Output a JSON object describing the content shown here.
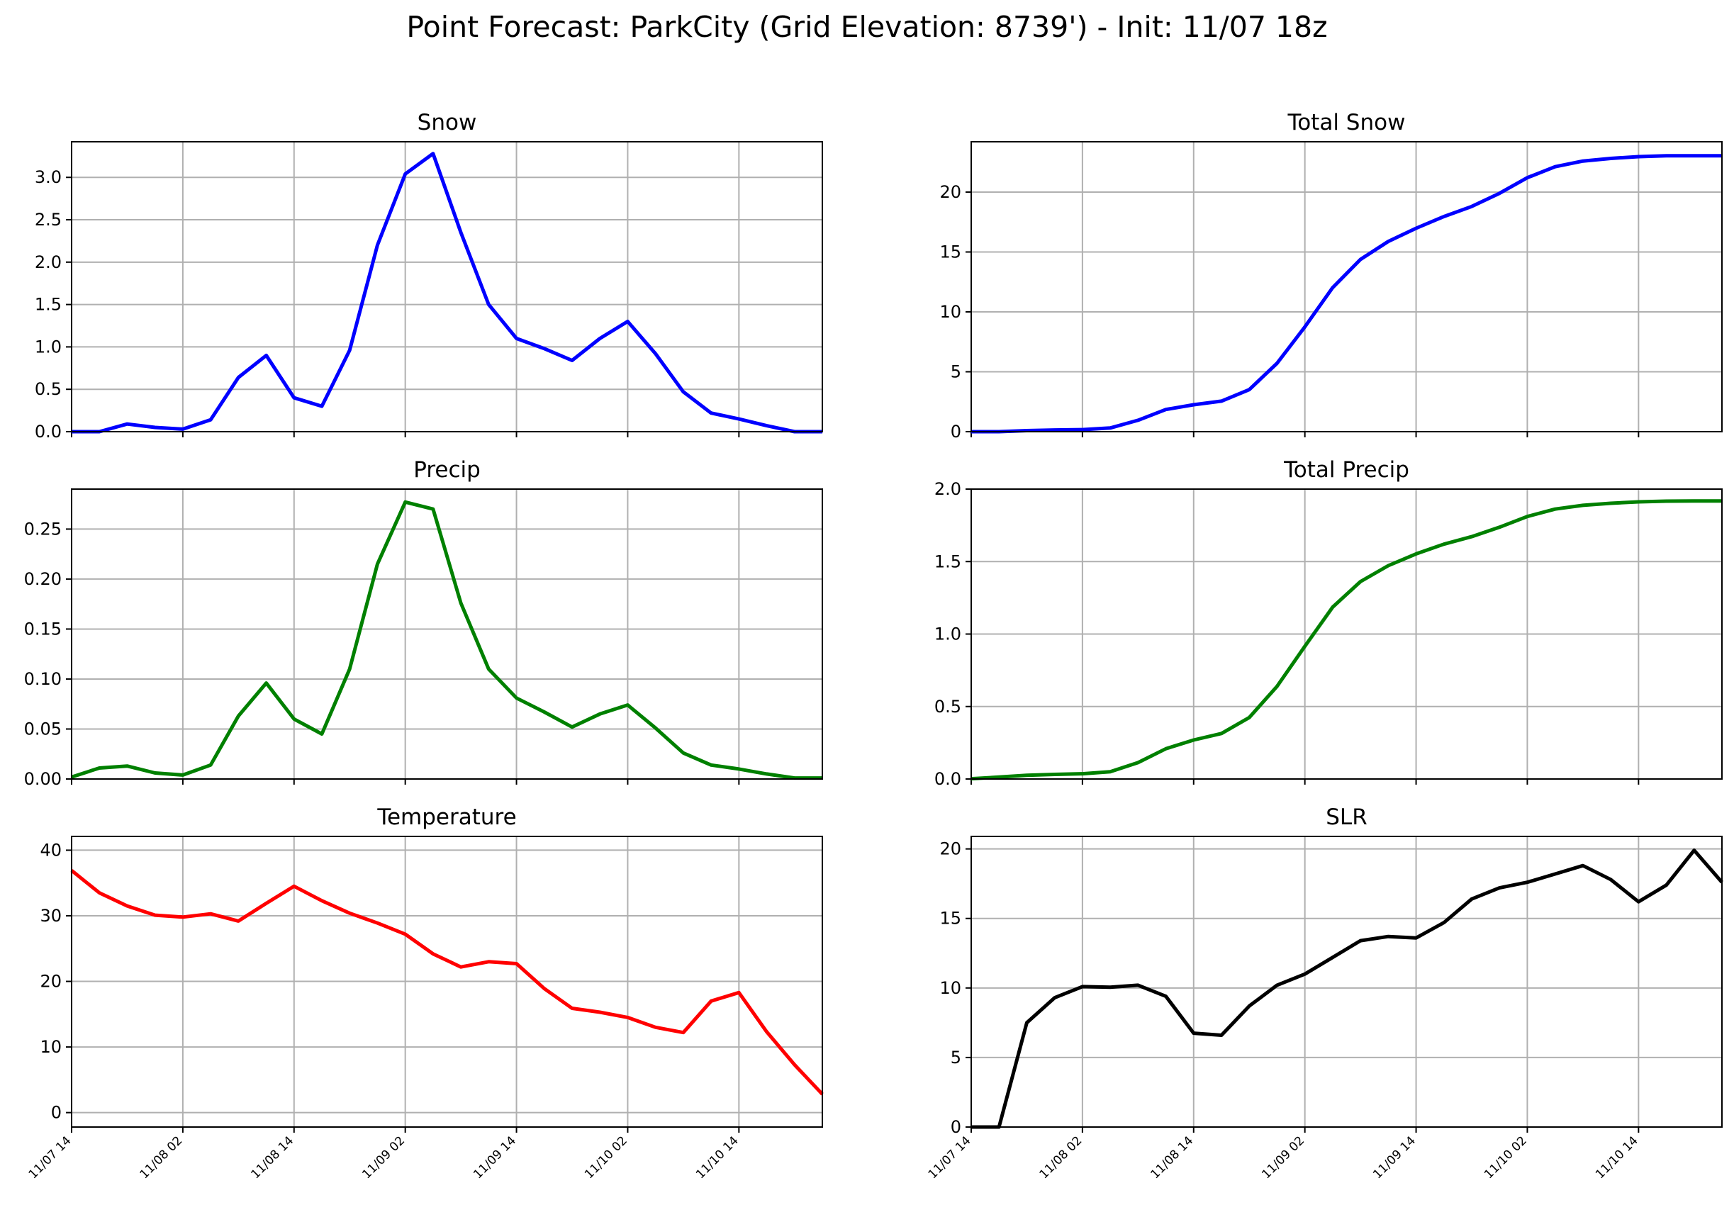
{
  "figure_title": "Point Forecast: ParkCity (Grid Elevation: 8739') - Init: 11/07 18z",
  "x_tick_labels": [
    "11/07 14",
    "11/08 02",
    "11/08 14",
    "11/09 02",
    "11/09 14",
    "11/10 02",
    "11/10 14"
  ],
  "colors": {
    "snow": "#0000ff",
    "precip": "#008000",
    "temperature": "#ff0000",
    "slr": "#000000"
  },
  "chart_data": [
    {
      "type": "line",
      "title": "Snow",
      "color": "#0000ff",
      "ylim": [
        0,
        3.42
      ],
      "yticks": [
        "0.0",
        "0.5",
        "1.0",
        "1.5",
        "2.0",
        "2.5",
        "3.0"
      ],
      "grid": true,
      "values": [
        0,
        0,
        0.09,
        0.05,
        0.03,
        0.14,
        0.64,
        0.9,
        0.4,
        0.3,
        0.96,
        2.2,
        3.04,
        3.28,
        2.35,
        1.5,
        1.1,
        0.98,
        0.84,
        1.1,
        1.3,
        0.92,
        0.47,
        0.22,
        0.15,
        0.07,
        0,
        0
      ]
    },
    {
      "type": "line",
      "title": "Total Snow",
      "color": "#0000ff",
      "ylim": [
        0,
        24.2
      ],
      "yticks": [
        "0",
        "5",
        "10",
        "15",
        "20"
      ],
      "grid": true,
      "values": [
        0,
        0,
        0.09,
        0.14,
        0.17,
        0.31,
        0.95,
        1.85,
        2.25,
        2.55,
        3.51,
        5.71,
        8.75,
        12.03,
        14.38,
        15.88,
        16.98,
        17.96,
        18.8,
        19.9,
        21.2,
        22.12,
        22.59,
        22.81,
        22.96,
        23.03,
        23.03,
        23.03
      ]
    },
    {
      "type": "line",
      "title": "Precip",
      "color": "#008000",
      "ylim": [
        0,
        0.29
      ],
      "yticks": [
        "0.00",
        "0.05",
        "0.10",
        "0.15",
        "0.20",
        "0.25"
      ],
      "grid": true,
      "values": [
        0.002,
        0.011,
        0.013,
        0.006,
        0.004,
        0.014,
        0.063,
        0.096,
        0.06,
        0.045,
        0.11,
        0.215,
        0.277,
        0.27,
        0.176,
        0.11,
        0.081,
        0.067,
        0.052,
        0.065,
        0.074,
        0.051,
        0.026,
        0.014,
        0.01,
        0.005,
        0.001,
        0.001
      ]
    },
    {
      "type": "line",
      "title": "Total Precip",
      "color": "#008000",
      "ylim": [
        0,
        2.0
      ],
      "yticks": [
        "0.0",
        "0.5",
        "1.0",
        "1.5",
        "2.0"
      ],
      "grid": true,
      "values": [
        0.002,
        0.013,
        0.026,
        0.032,
        0.036,
        0.05,
        0.113,
        0.209,
        0.269,
        0.314,
        0.424,
        0.639,
        0.916,
        1.186,
        1.362,
        1.472,
        1.553,
        1.62,
        1.672,
        1.737,
        1.811,
        1.862,
        1.888,
        1.902,
        1.912,
        1.917,
        1.918,
        1.918
      ]
    },
    {
      "type": "line",
      "title": "Temperature",
      "color": "#ff0000",
      "ylim": [
        -2.2,
        42.1
      ],
      "yticks": [
        "0",
        "10",
        "20",
        "30",
        "40"
      ],
      "grid": true,
      "values": [
        36.9,
        33.5,
        31.5,
        30.1,
        29.8,
        30.3,
        29.2,
        31.9,
        34.5,
        32.3,
        30.4,
        28.9,
        27.2,
        24.2,
        22.2,
        23.0,
        22.7,
        18.9,
        15.9,
        15.3,
        14.5,
        13.0,
        12.2,
        17.0,
        18.3,
        12.3,
        7.3,
        2.8
      ]
    },
    {
      "type": "line",
      "title": "SLR",
      "color": "#000000",
      "ylim": [
        0,
        20.9
      ],
      "yticks": [
        "0",
        "5",
        "10",
        "15",
        "20"
      ],
      "grid": true,
      "values": [
        0,
        0,
        7.5,
        9.3,
        10.1,
        10.05,
        10.2,
        9.4,
        6.75,
        6.6,
        8.7,
        10.2,
        11.0,
        12.2,
        13.4,
        13.7,
        13.6,
        14.7,
        16.4,
        17.2,
        17.6,
        18.2,
        18.8,
        17.8,
        16.2,
        17.4,
        19.9,
        17.6
      ]
    }
  ]
}
